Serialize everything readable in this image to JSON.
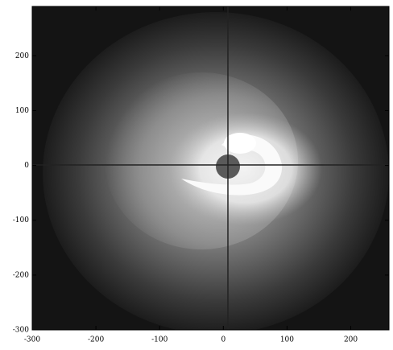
{
  "chart_data": {
    "type": "image",
    "xlim": [
      -300,
      260
    ],
    "ylim": [
      -300,
      290
    ],
    "xticks": [
      -300,
      -200,
      -100,
      0,
      100,
      200
    ],
    "yticks": [
      -300,
      -200,
      -100,
      0,
      100,
      200
    ]
  }
}
